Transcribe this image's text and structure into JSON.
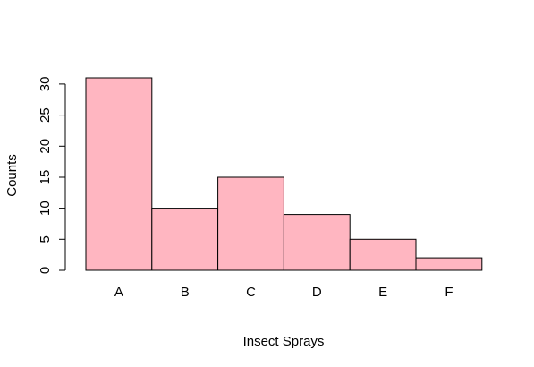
{
  "chart_data": {
    "type": "bar",
    "title": "",
    "xlabel": "Insect Sprays",
    "ylabel": "Counts",
    "categories": [
      "A",
      "B",
      "C",
      "D",
      "E",
      "F"
    ],
    "values": [
      31,
      10,
      15,
      9,
      5,
      2
    ],
    "ylim": [
      0,
      31
    ],
    "yticks": [
      0,
      5,
      10,
      15,
      20,
      25,
      30
    ],
    "grid": false,
    "legend": "none",
    "bar_color": "#ffb6c1",
    "border_color": "#000000"
  }
}
